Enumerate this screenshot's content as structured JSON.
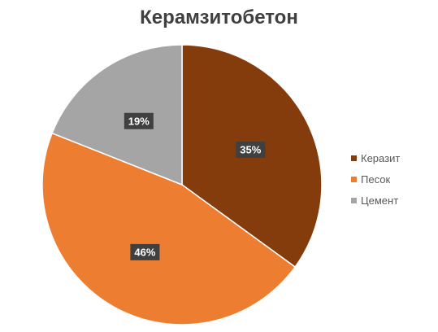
{
  "chart_data": {
    "type": "pie",
    "title": "Керамзитобетон",
    "categories": [
      "Керазит",
      "Песок",
      "Цемент"
    ],
    "values": [
      35,
      46,
      19
    ],
    "labels": [
      "35%",
      "46%",
      "19%"
    ],
    "colors": [
      "#843c0c",
      "#ed7d31",
      "#a5a5a5"
    ],
    "legend_position": "right"
  }
}
